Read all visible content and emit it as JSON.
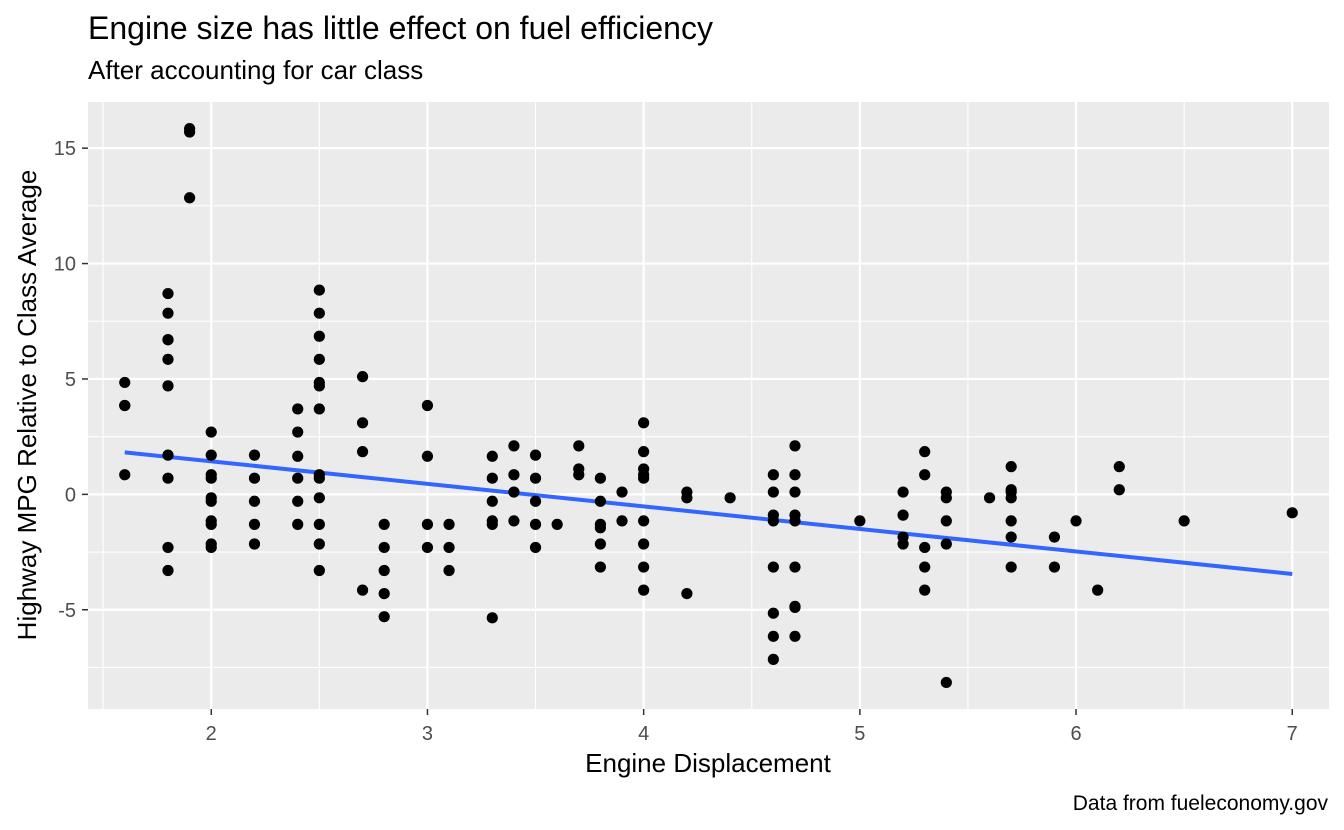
{
  "chart_data": {
    "type": "scatter",
    "title": "Engine size has little effect on fuel efficiency",
    "subtitle": "After accounting for car class",
    "xlabel": "Engine Displacement",
    "ylabel": "Highway MPG Relative to Class Average",
    "caption": "Data from fueleconomy.gov",
    "xlim": [
      1.43,
      7.17
    ],
    "ylim": [
      -9.3,
      17.0
    ],
    "x_ticks": [
      2,
      3,
      4,
      5,
      6,
      7
    ],
    "y_ticks": [
      -5,
      0,
      5,
      10,
      15
    ],
    "x_tick_labels": [
      "2",
      "3",
      "4",
      "5",
      "6",
      "7"
    ],
    "y_tick_labels": [
      "-5",
      "0",
      "5",
      "10",
      "15"
    ],
    "grid": true,
    "colors": {
      "panel": "#ebebeb",
      "grid": "#ffffff",
      "points": "#000000",
      "trend": "#3366ff"
    },
    "points": [
      [
        1.6,
        4.85
      ],
      [
        1.6,
        3.85
      ],
      [
        1.6,
        3.85
      ],
      [
        1.6,
        0.85
      ],
      [
        1.8,
        8.7
      ],
      [
        1.8,
        7.85
      ],
      [
        1.8,
        6.7
      ],
      [
        1.8,
        6.7
      ],
      [
        1.8,
        5.85
      ],
      [
        1.8,
        4.7
      ],
      [
        1.8,
        1.7
      ],
      [
        1.8,
        0.7
      ],
      [
        1.8,
        -2.3
      ],
      [
        1.8,
        -3.3
      ],
      [
        1.9,
        15.85
      ],
      [
        1.9,
        15.7
      ],
      [
        1.9,
        12.85
      ],
      [
        2.0,
        2.7
      ],
      [
        2.0,
        1.7
      ],
      [
        2.0,
        0.85
      ],
      [
        2.0,
        0.7
      ],
      [
        2.0,
        -0.15
      ],
      [
        2.0,
        -0.3
      ],
      [
        2.0,
        -1.15
      ],
      [
        2.0,
        -1.3
      ],
      [
        2.0,
        -2.15
      ],
      [
        2.0,
        -2.3
      ],
      [
        2.2,
        1.7
      ],
      [
        2.2,
        0.7
      ],
      [
        2.2,
        -0.3
      ],
      [
        2.2,
        -1.3
      ],
      [
        2.2,
        -2.15
      ],
      [
        2.4,
        3.7
      ],
      [
        2.4,
        2.7
      ],
      [
        2.4,
        1.65
      ],
      [
        2.4,
        0.7
      ],
      [
        2.4,
        -0.3
      ],
      [
        2.4,
        -1.3
      ],
      [
        2.5,
        8.85
      ],
      [
        2.5,
        7.85
      ],
      [
        2.5,
        6.85
      ],
      [
        2.5,
        5.85
      ],
      [
        2.5,
        4.85
      ],
      [
        2.5,
        4.7
      ],
      [
        2.5,
        3.7
      ],
      [
        2.5,
        0.85
      ],
      [
        2.5,
        0.7
      ],
      [
        2.5,
        -0.15
      ],
      [
        2.5,
        -1.3
      ],
      [
        2.5,
        -2.15
      ],
      [
        2.5,
        -3.3
      ],
      [
        2.7,
        5.1
      ],
      [
        2.7,
        3.1
      ],
      [
        2.7,
        1.85
      ],
      [
        2.7,
        -4.15
      ],
      [
        2.8,
        -1.3
      ],
      [
        2.8,
        -2.3
      ],
      [
        2.8,
        -3.3
      ],
      [
        2.8,
        -4.3
      ],
      [
        2.8,
        -5.3
      ],
      [
        3.0,
        3.85
      ],
      [
        3.0,
        1.65
      ],
      [
        3.0,
        -1.3
      ],
      [
        3.0,
        -2.3
      ],
      [
        3.1,
        -1.3
      ],
      [
        3.1,
        -2.3
      ],
      [
        3.1,
        -3.3
      ],
      [
        3.3,
        1.65
      ],
      [
        3.3,
        0.7
      ],
      [
        3.3,
        -0.3
      ],
      [
        3.3,
        -1.15
      ],
      [
        3.3,
        -1.3
      ],
      [
        3.3,
        -5.35
      ],
      [
        3.4,
        2.1
      ],
      [
        3.4,
        0.85
      ],
      [
        3.4,
        0.1
      ],
      [
        3.4,
        -1.15
      ],
      [
        3.5,
        1.7
      ],
      [
        3.5,
        0.7
      ],
      [
        3.5,
        -0.3
      ],
      [
        3.5,
        -1.3
      ],
      [
        3.5,
        -2.3
      ],
      [
        3.6,
        -1.3
      ],
      [
        3.7,
        2.1
      ],
      [
        3.7,
        1.1
      ],
      [
        3.7,
        0.85
      ],
      [
        3.8,
        0.7
      ],
      [
        3.8,
        -0.3
      ],
      [
        3.8,
        -1.3
      ],
      [
        3.8,
        -1.45
      ],
      [
        3.8,
        -2.15
      ],
      [
        3.8,
        -3.15
      ],
      [
        3.9,
        0.1
      ],
      [
        3.9,
        -1.15
      ],
      [
        4.0,
        3.1
      ],
      [
        4.0,
        1.85
      ],
      [
        4.0,
        1.1
      ],
      [
        4.0,
        0.85
      ],
      [
        4.0,
        0.7
      ],
      [
        4.0,
        -1.15
      ],
      [
        4.0,
        -2.15
      ],
      [
        4.0,
        -3.15
      ],
      [
        4.0,
        -4.15
      ],
      [
        4.2,
        0.1
      ],
      [
        4.2,
        -0.15
      ],
      [
        4.2,
        -4.3
      ],
      [
        4.4,
        -0.15
      ],
      [
        4.6,
        0.85
      ],
      [
        4.6,
        0.1
      ],
      [
        4.6,
        -0.9
      ],
      [
        4.6,
        -1.15
      ],
      [
        4.6,
        -3.15
      ],
      [
        4.6,
        -5.15
      ],
      [
        4.6,
        -6.15
      ],
      [
        4.6,
        -7.15
      ],
      [
        4.7,
        2.1
      ],
      [
        4.7,
        0.85
      ],
      [
        4.7,
        0.1
      ],
      [
        4.7,
        -0.9
      ],
      [
        4.7,
        -1.15
      ],
      [
        4.7,
        -3.15
      ],
      [
        4.7,
        -4.85
      ],
      [
        4.7,
        -4.9
      ],
      [
        4.7,
        -6.15
      ],
      [
        5.0,
        -1.15
      ],
      [
        5.2,
        0.1
      ],
      [
        5.2,
        -0.9
      ],
      [
        5.2,
        -1.85
      ],
      [
        5.2,
        -2.15
      ],
      [
        5.3,
        1.85
      ],
      [
        5.3,
        0.85
      ],
      [
        5.3,
        -2.3
      ],
      [
        5.3,
        -3.15
      ],
      [
        5.3,
        -4.15
      ],
      [
        5.4,
        0.1
      ],
      [
        5.4,
        -0.15
      ],
      [
        5.4,
        -1.15
      ],
      [
        5.4,
        -2.15
      ],
      [
        5.4,
        -8.15
      ],
      [
        5.6,
        -0.15
      ],
      [
        5.7,
        1.2
      ],
      [
        5.7,
        0.2
      ],
      [
        5.7,
        0.1
      ],
      [
        5.7,
        -0.15
      ],
      [
        5.7,
        -1.15
      ],
      [
        5.7,
        -1.85
      ],
      [
        5.7,
        -3.15
      ],
      [
        5.9,
        -1.85
      ],
      [
        5.9,
        -3.15
      ],
      [
        6.0,
        -1.15
      ],
      [
        6.1,
        -4.15
      ],
      [
        6.2,
        1.2
      ],
      [
        6.2,
        0.2
      ],
      [
        6.5,
        -1.15
      ],
      [
        7.0,
        -0.8
      ]
    ],
    "trend_line": {
      "x": [
        1.6,
        7.0
      ],
      "y": [
        1.82,
        -3.45
      ]
    }
  }
}
